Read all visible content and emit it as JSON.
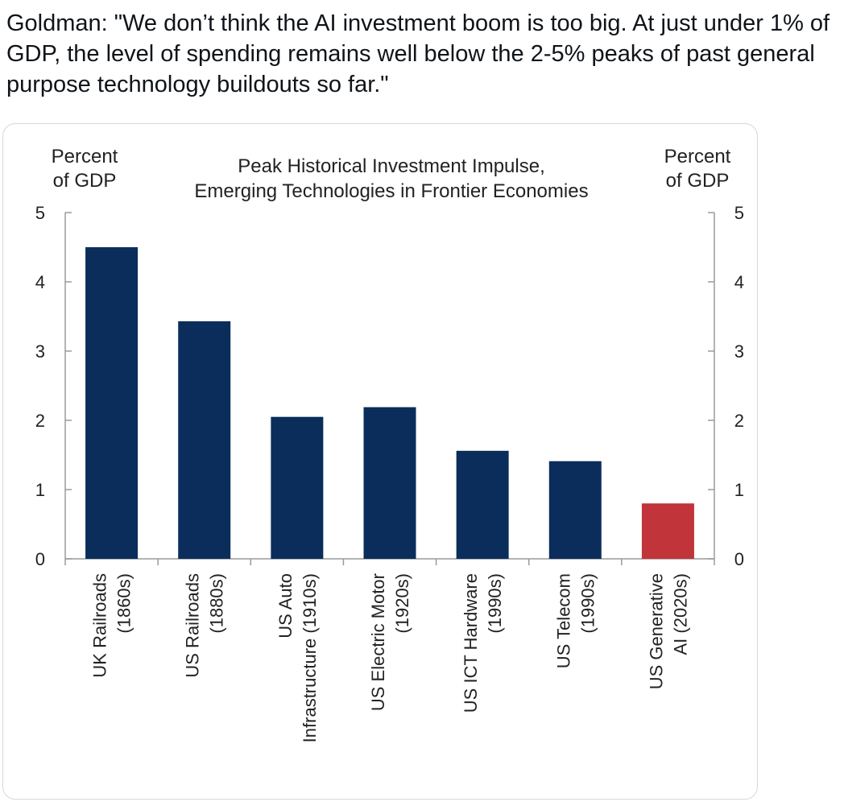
{
  "tweet": {
    "text": "Goldman: \"We don’t think the AI investment boom is too big. At just under 1% of GDP, the level of spending remains well below the 2-5% peaks of past general purpose technology buildouts so far.\""
  },
  "chart_data": {
    "type": "bar",
    "title_lines": [
      "Peak Historical Investment Impulse,",
      "Emerging Technologies  in Frontier Economies"
    ],
    "ylabel_left": [
      "Percent",
      "of GDP"
    ],
    "ylabel_right": [
      "Percent",
      "of GDP"
    ],
    "ylim": [
      0,
      5
    ],
    "yticks": [
      0,
      1,
      2,
      3,
      4,
      5
    ],
    "categories": [
      [
        "UK Railroads",
        "(1860s)"
      ],
      [
        "US Railroads",
        "(1880s)"
      ],
      [
        "US Auto",
        "Infrastructure (1910s)"
      ],
      [
        "US Electric Motor",
        "(1920s)"
      ],
      [
        "US ICT Hardware",
        "(1990s)"
      ],
      [
        "US Telecom",
        "(1990s)"
      ],
      [
        "US Generative",
        "AI (2020s)"
      ]
    ],
    "values": [
      4.5,
      3.43,
      2.05,
      2.19,
      1.56,
      1.41,
      0.8
    ],
    "bar_colors": [
      "#0b2d5b",
      "#0b2d5b",
      "#0b2d5b",
      "#0b2d5b",
      "#0b2d5b",
      "#0b2d5b",
      "#c0343a"
    ],
    "axis_color": "#9a9a9a"
  }
}
